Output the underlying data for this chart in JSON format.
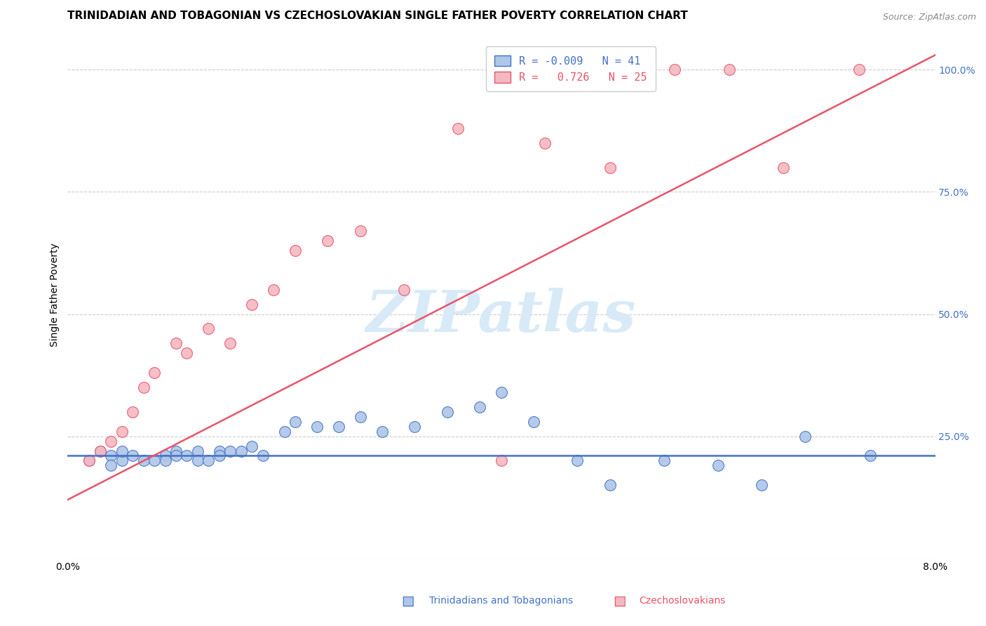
{
  "title": "TRINIDADIAN AND TOBAGONIAN VS CZECHOSLOVAKIAN SINGLE FATHER POVERTY CORRELATION CHART",
  "source": "Source: ZipAtlas.com",
  "ylabel": "Single Father Poverty",
  "ytick_vals": [
    0.0,
    0.25,
    0.5,
    0.75,
    1.0
  ],
  "ytick_labels": [
    "",
    "25.0%",
    "50.0%",
    "75.0%",
    "100.0%"
  ],
  "xtick_vals": [
    0.0,
    0.01,
    0.02,
    0.03,
    0.04,
    0.05,
    0.06,
    0.07,
    0.08
  ],
  "xlim": [
    0.0,
    0.08
  ],
  "ylim": [
    0.0,
    1.08
  ],
  "legend_r1": "R = -0.009   N = 41",
  "legend_r2": "R =   0.726   N = 25",
  "watermark_text": "ZIPatlas",
  "blue_scatter_x": [
    0.002,
    0.003,
    0.004,
    0.004,
    0.005,
    0.005,
    0.006,
    0.007,
    0.008,
    0.009,
    0.009,
    0.01,
    0.01,
    0.011,
    0.012,
    0.012,
    0.013,
    0.014,
    0.014,
    0.015,
    0.016,
    0.017,
    0.018,
    0.02,
    0.021,
    0.023,
    0.025,
    0.027,
    0.029,
    0.032,
    0.035,
    0.038,
    0.04,
    0.043,
    0.047,
    0.05,
    0.055,
    0.06,
    0.064,
    0.068,
    0.074
  ],
  "blue_scatter_y": [
    0.2,
    0.22,
    0.21,
    0.19,
    0.2,
    0.22,
    0.21,
    0.2,
    0.2,
    0.21,
    0.2,
    0.22,
    0.21,
    0.21,
    0.22,
    0.2,
    0.2,
    0.22,
    0.21,
    0.22,
    0.22,
    0.23,
    0.21,
    0.26,
    0.28,
    0.27,
    0.27,
    0.29,
    0.26,
    0.27,
    0.3,
    0.31,
    0.34,
    0.28,
    0.2,
    0.15,
    0.2,
    0.19,
    0.15,
    0.25,
    0.21
  ],
  "pink_scatter_x": [
    0.002,
    0.003,
    0.004,
    0.005,
    0.006,
    0.007,
    0.008,
    0.01,
    0.011,
    0.013,
    0.015,
    0.017,
    0.019,
    0.021,
    0.024,
    0.027,
    0.031,
    0.036,
    0.04,
    0.044,
    0.05,
    0.056,
    0.061,
    0.066,
    0.073
  ],
  "pink_scatter_y": [
    0.2,
    0.22,
    0.24,
    0.26,
    0.3,
    0.35,
    0.38,
    0.44,
    0.42,
    0.47,
    0.44,
    0.52,
    0.55,
    0.63,
    0.65,
    0.67,
    0.55,
    0.88,
    0.2,
    0.85,
    0.8,
    1.0,
    1.0,
    0.8,
    1.0
  ],
  "blue_line_x": [
    0.0,
    0.08
  ],
  "blue_line_y": [
    0.21,
    0.21
  ],
  "pink_line_x": [
    0.0,
    0.08
  ],
  "pink_line_y": [
    0.12,
    1.03
  ],
  "blue_color": "#4472c4",
  "pink_color": "#e8546a",
  "blue_scatter_color": "#aec6e8",
  "pink_scatter_color": "#f4b8c1",
  "grid_color": "#cccccc",
  "title_fontsize": 11,
  "axis_label_fontsize": 10,
  "tick_fontsize": 10,
  "watermark_fontsize": 60,
  "watermark_color": "#d8eaf7",
  "source_fontsize": 9,
  "legend_fontsize": 11
}
